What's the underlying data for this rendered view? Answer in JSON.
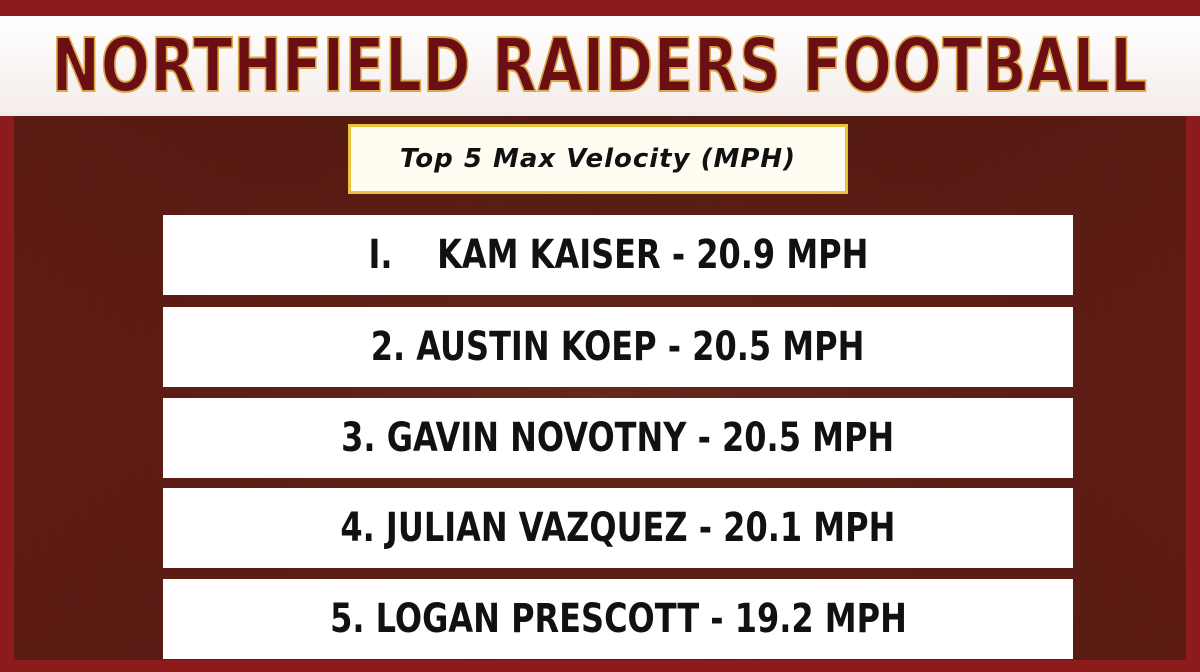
{
  "header": {
    "title": "NORTHFIELD RAIDERS FOOTBALL"
  },
  "subtitle": "Top 5 Max Velocity (MPH)",
  "rows": [
    "I.    KAM KAISER - 20.9 MPH",
    "2. AUSTIN KOEP - 20.5 MPH",
    "3. GAVIN NOVOTNY - 20.5 MPH",
    "4. JULIAN VAZQUEZ - 20.1 MPH",
    "5. LOGAN PRESCOTT - 19.2 MPH"
  ]
}
